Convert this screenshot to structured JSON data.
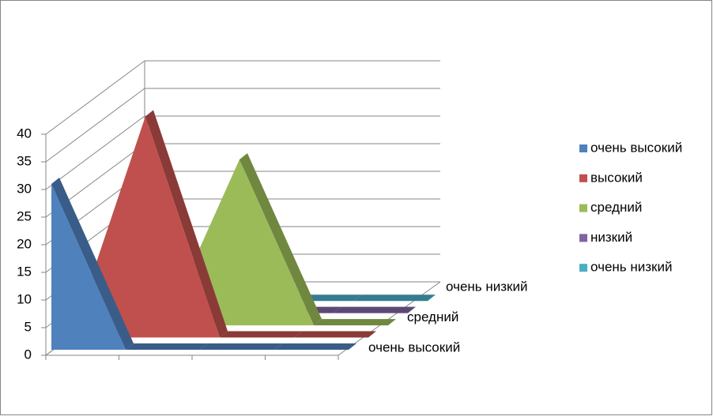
{
  "chart_data": {
    "type": "area3d",
    "categories": [
      null,
      null,
      null,
      null,
      null
    ],
    "series": [
      {
        "name": "очень высокий",
        "color": "#4f81bd",
        "values": [
          30,
          0,
          0,
          0,
          0
        ]
      },
      {
        "name": "высокий",
        "color": "#c0504d",
        "values": [
          0,
          40,
          0,
          0,
          0
        ]
      },
      {
        "name": "средний",
        "color": "#9bbb59",
        "values": [
          0,
          0,
          30,
          0,
          0
        ]
      },
      {
        "name": "низкий",
        "color": "#8064a2",
        "values": [
          0,
          0,
          0,
          0,
          0
        ]
      },
      {
        "name": "очень низкий",
        "color": "#4bacc6",
        "values": [
          0,
          0,
          0,
          0,
          0
        ]
      }
    ],
    "depth_labels": [
      "очень высокий",
      null,
      "средний",
      null,
      "очень низкий"
    ],
    "ylim": [
      0,
      40
    ],
    "yticks": [
      0,
      5,
      10,
      15,
      20,
      25,
      30,
      35,
      40
    ],
    "grid": true,
    "legend": "right"
  }
}
